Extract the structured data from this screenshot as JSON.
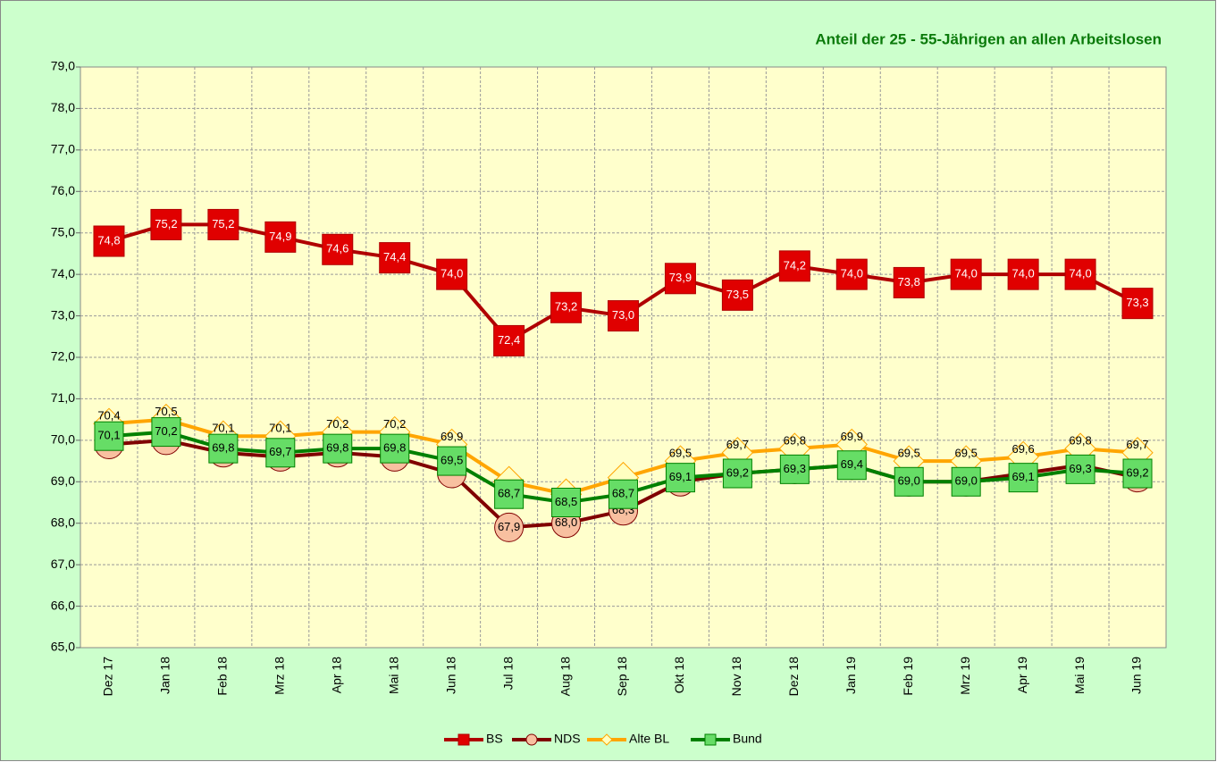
{
  "chart_data": {
    "type": "line",
    "title": "Anteil der 25 - 55-Jährigen an allen Arbeitslosen",
    "categories": [
      "Dez 17",
      "Jan 18",
      "Feb 18",
      "Mrz 18",
      "Apr 18",
      "Mai 18",
      "Jun 18",
      "Jul 18",
      "Aug 18",
      "Sep 18",
      "Okt 18",
      "Nov 18",
      "Dez 18",
      "Jan 19",
      "Feb 19",
      "Mrz 19",
      "Apr 19",
      "Mai 19",
      "Jun 19"
    ],
    "series": [
      {
        "name": "BS",
        "color": "#b00000",
        "marker": "square",
        "marker_color": "#e00000",
        "values": [
          74.8,
          75.2,
          75.2,
          74.9,
          74.6,
          74.4,
          74.0,
          72.4,
          73.2,
          73.0,
          73.9,
          73.5,
          74.2,
          74.0,
          73.8,
          74.0,
          74.0,
          74.0,
          73.3
        ],
        "value_labels": [
          "74,8",
          "75,2",
          "75,2",
          "74,9",
          "74,6",
          "74,4",
          "74,0",
          "72,4",
          "73,2",
          "73,0",
          "73,9",
          "73,5",
          "74,2",
          "74,0",
          "73,8",
          "74,0",
          "74,0",
          "74,0",
          "73,3"
        ]
      },
      {
        "name": "NDS",
        "color": "#800000",
        "marker": "circle",
        "marker_color": "#f8c0a0",
        "values": [
          69.9,
          70.0,
          69.7,
          69.6,
          69.7,
          69.6,
          69.2,
          67.9,
          68.0,
          68.3,
          69.0,
          69.2,
          69.3,
          69.4,
          69.0,
          69.0,
          69.2,
          69.4,
          69.1
        ],
        "value_labels": [
          null,
          null,
          null,
          null,
          null,
          null,
          null,
          "67,9",
          "68,0",
          "68,3",
          null,
          null,
          null,
          null,
          null,
          null,
          null,
          null,
          null
        ]
      },
      {
        "name": "Alte BL",
        "color": "#ffa500",
        "marker": "diamond",
        "marker_color": "#ffffc0",
        "values": [
          70.4,
          70.5,
          70.1,
          70.1,
          70.2,
          70.2,
          69.9,
          69.0,
          68.7,
          69.1,
          69.5,
          69.7,
          69.8,
          69.9,
          69.5,
          69.5,
          69.6,
          69.8,
          69.7
        ],
        "value_labels": [
          "70,4",
          "70,5",
          "70,1",
          "70,1",
          "70,2",
          "70,2",
          "69,9",
          null,
          null,
          null,
          "69,5",
          "69,7",
          "69,8",
          "69,9",
          "69,5",
          "69,5",
          "69,6",
          "69,8",
          "69,7"
        ]
      },
      {
        "name": "Bund",
        "color": "#008000",
        "marker": "square",
        "marker_color": "#66dd66",
        "values": [
          70.1,
          70.2,
          69.8,
          69.7,
          69.8,
          69.8,
          69.5,
          68.7,
          68.5,
          68.7,
          69.1,
          69.2,
          69.3,
          69.4,
          69.0,
          69.0,
          69.1,
          69.3,
          69.2
        ],
        "value_labels": [
          "70,1",
          "70,2",
          "69,8",
          "69,7",
          "69,8",
          "69,8",
          "69,5",
          "68,7",
          "68,5",
          "68,7",
          "69,1",
          "69,2",
          "69,3",
          "69,4",
          "69,0",
          "69,0",
          "69,1",
          "69,3",
          "69,2"
        ]
      }
    ],
    "ylim": [
      65,
      79
    ],
    "yticks": [
      {
        "value": 65,
        "label": "65,0"
      },
      {
        "value": 66,
        "label": "66,0"
      },
      {
        "value": 67,
        "label": "67,0"
      },
      {
        "value": 68,
        "label": "68,0"
      },
      {
        "value": 69,
        "label": "69,0"
      },
      {
        "value": 70,
        "label": "70,0"
      },
      {
        "value": 71,
        "label": "71,0"
      },
      {
        "value": 72,
        "label": "72,0"
      },
      {
        "value": 73,
        "label": "73,0"
      },
      {
        "value": 74,
        "label": "74,0"
      },
      {
        "value": 75,
        "label": "75,0"
      },
      {
        "value": 76,
        "label": "76,0"
      },
      {
        "value": 77,
        "label": "77,0"
      },
      {
        "value": 78,
        "label": "78,0"
      },
      {
        "value": 79,
        "label": "79,0"
      }
    ],
    "grid": true,
    "legend": "bottom"
  }
}
